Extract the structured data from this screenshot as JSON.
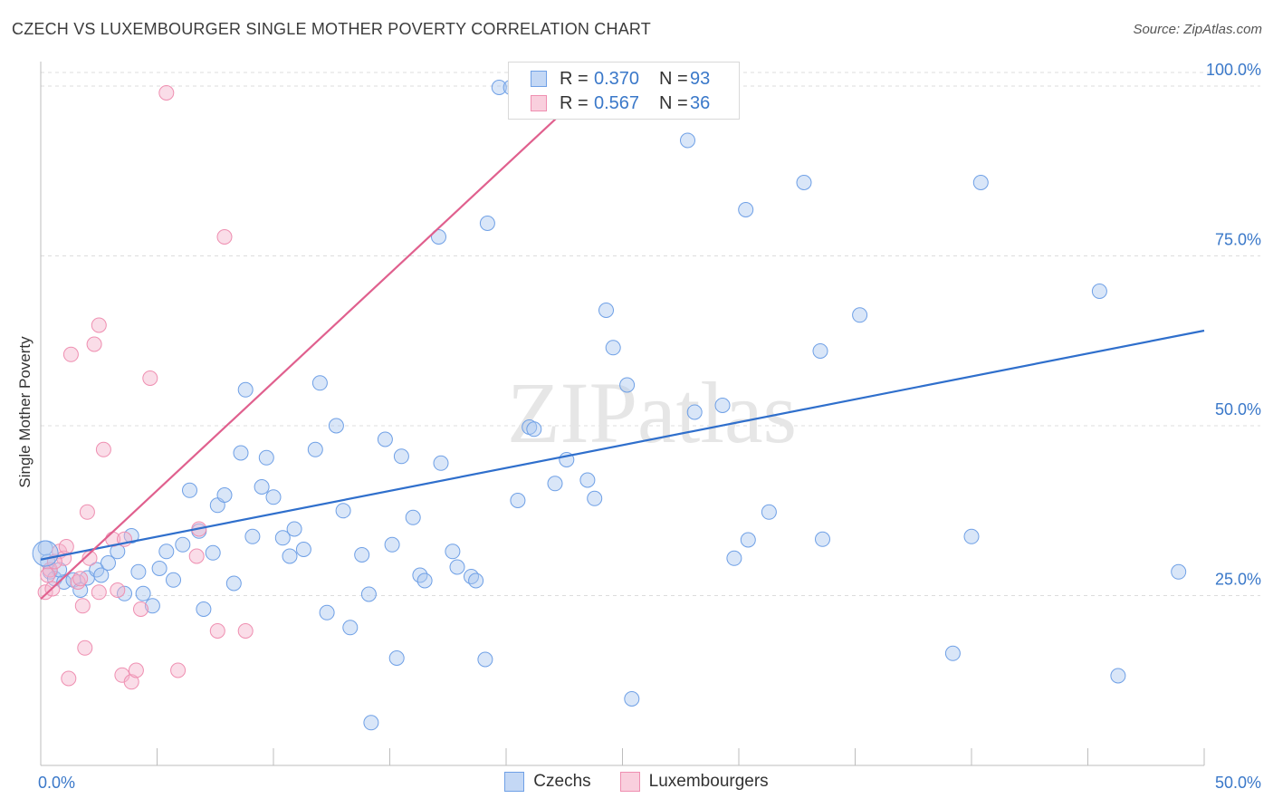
{
  "header": {
    "title": "CZECH VS LUXEMBOURGER SINGLE MOTHER POVERTY CORRELATION CHART",
    "source": "Source: ZipAtlas.com"
  },
  "watermark": "ZIPatlas",
  "legend_top": {
    "rows": [
      {
        "r_label": "R =",
        "r_value": "0.370",
        "n_label": "N =",
        "n_value": "93",
        "color": "#6fa0e6"
      },
      {
        "r_label": "R =",
        "r_value": "0.567",
        "n_label": "N =",
        "n_value": "36",
        "color": "#ef8fb1"
      }
    ]
  },
  "legend_bottom": {
    "items": [
      {
        "label": "Czechs",
        "color": "#6fa0e6"
      },
      {
        "label": "Luxembourgers",
        "color": "#ef8fb1"
      }
    ]
  },
  "chart_data": {
    "type": "scatter",
    "title": "CZECH VS LUXEMBOURGER SINGLE MOTHER POVERTY CORRELATION CHART",
    "xlabel": "",
    "ylabel": "Single Mother Poverty",
    "xlim": [
      0,
      50
    ],
    "ylim": [
      0,
      102
    ],
    "x_tick_labels": [
      "0.0%",
      "50.0%"
    ],
    "y_ticks": [
      25,
      50,
      75,
      100
    ],
    "y_tick_labels": [
      "25.0%",
      "50.0%",
      "75.0%",
      "100.0%"
    ],
    "grid": "horizontal dashed",
    "legend_position": "top-center",
    "series": [
      {
        "name": "Czechs",
        "color": "#6fa0e6",
        "trendline": {
          "x": [
            0,
            50
          ],
          "y": [
            30.3,
            64.0
          ]
        },
        "points": [
          [
            0.2,
            32.0
          ],
          [
            0.3,
            30.0
          ],
          [
            0.4,
            28.5
          ],
          [
            0.6,
            27.5
          ],
          [
            1.0,
            27.0
          ],
          [
            1.4,
            27.3
          ],
          [
            1.7,
            25.8
          ],
          [
            2.0,
            27.6
          ],
          [
            2.4,
            28.8
          ],
          [
            2.6,
            28.0
          ],
          [
            2.9,
            29.8
          ],
          [
            3.3,
            31.5
          ],
          [
            3.6,
            25.3
          ],
          [
            3.9,
            33.8
          ],
          [
            4.2,
            28.5
          ],
          [
            4.4,
            25.3
          ],
          [
            4.8,
            23.5
          ],
          [
            5.1,
            29.0
          ],
          [
            5.4,
            31.5
          ],
          [
            5.7,
            27.3
          ],
          [
            6.1,
            32.5
          ],
          [
            6.4,
            40.5
          ],
          [
            6.8,
            34.5
          ],
          [
            7.0,
            23.0
          ],
          [
            7.4,
            31.3
          ],
          [
            7.6,
            38.3
          ],
          [
            7.9,
            39.8
          ],
          [
            8.3,
            26.8
          ],
          [
            8.6,
            46.0
          ],
          [
            8.8,
            55.3
          ],
          [
            9.1,
            33.7
          ],
          [
            9.5,
            41.0
          ],
          [
            9.7,
            45.3
          ],
          [
            10.0,
            39.5
          ],
          [
            10.4,
            33.5
          ],
          [
            10.7,
            30.8
          ],
          [
            10.9,
            34.8
          ],
          [
            11.3,
            31.8
          ],
          [
            11.8,
            46.5
          ],
          [
            12.0,
            56.3
          ],
          [
            12.3,
            22.5
          ],
          [
            12.7,
            50.0
          ],
          [
            13.0,
            37.5
          ],
          [
            13.3,
            20.3
          ],
          [
            13.8,
            31.0
          ],
          [
            14.1,
            25.2
          ],
          [
            14.2,
            6.3
          ],
          [
            14.8,
            48.0
          ],
          [
            15.1,
            32.5
          ],
          [
            15.3,
            15.8
          ],
          [
            15.5,
            45.5
          ],
          [
            16.0,
            36.5
          ],
          [
            16.3,
            28.0
          ],
          [
            16.5,
            27.2
          ],
          [
            17.1,
            77.8
          ],
          [
            17.2,
            44.5
          ],
          [
            17.7,
            31.5
          ],
          [
            17.9,
            29.2
          ],
          [
            18.5,
            27.8
          ],
          [
            18.7,
            27.2
          ],
          [
            19.1,
            15.6
          ],
          [
            19.2,
            79.8
          ],
          [
            19.7,
            99.8
          ],
          [
            20.2,
            99.8
          ],
          [
            20.5,
            39.0
          ],
          [
            21.0,
            49.8
          ],
          [
            21.2,
            49.5
          ],
          [
            22.1,
            41.5
          ],
          [
            22.6,
            45.0
          ],
          [
            23.5,
            42.0
          ],
          [
            23.8,
            39.3
          ],
          [
            24.3,
            67.0
          ],
          [
            24.6,
            61.5
          ],
          [
            25.2,
            56.0
          ],
          [
            25.4,
            9.8
          ],
          [
            27.8,
            92.0
          ],
          [
            28.1,
            52.0
          ],
          [
            29.3,
            53.0
          ],
          [
            29.8,
            30.5
          ],
          [
            30.3,
            81.8
          ],
          [
            30.4,
            33.2
          ],
          [
            31.3,
            37.3
          ],
          [
            32.8,
            85.8
          ],
          [
            33.5,
            61.0
          ],
          [
            33.6,
            33.3
          ],
          [
            35.2,
            66.3
          ],
          [
            39.2,
            16.5
          ],
          [
            40.0,
            33.7
          ],
          [
            40.4,
            85.8
          ],
          [
            45.5,
            69.8
          ],
          [
            46.3,
            13.2
          ],
          [
            48.9,
            28.5
          ],
          [
            0.8,
            28.8
          ]
        ]
      },
      {
        "name": "Luxembourgers",
        "color": "#ef8fb1",
        "trendline": {
          "x": [
            0,
            23.8
          ],
          "y": [
            24.5,
            100.5
          ]
        },
        "points": [
          [
            0.2,
            25.5
          ],
          [
            0.4,
            28.8
          ],
          [
            0.5,
            26.0
          ],
          [
            0.8,
            31.5
          ],
          [
            1.0,
            30.5
          ],
          [
            1.1,
            32.2
          ],
          [
            1.2,
            12.8
          ],
          [
            1.3,
            60.5
          ],
          [
            1.6,
            27.0
          ],
          [
            1.7,
            27.5
          ],
          [
            1.8,
            23.5
          ],
          [
            1.9,
            17.3
          ],
          [
            2.0,
            37.3
          ],
          [
            2.1,
            30.5
          ],
          [
            2.3,
            62.0
          ],
          [
            2.5,
            25.5
          ],
          [
            2.5,
            64.8
          ],
          [
            2.7,
            46.5
          ],
          [
            3.1,
            33.3
          ],
          [
            3.3,
            25.8
          ],
          [
            3.5,
            13.3
          ],
          [
            3.6,
            33.3
          ],
          [
            3.9,
            12.3
          ],
          [
            4.1,
            14.0
          ],
          [
            4.3,
            23.0
          ],
          [
            4.7,
            57.0
          ],
          [
            5.4,
            99.0
          ],
          [
            5.9,
            14.0
          ],
          [
            6.7,
            30.8
          ],
          [
            6.8,
            34.8
          ],
          [
            7.6,
            19.8
          ],
          [
            7.9,
            77.8
          ],
          [
            8.8,
            19.8
          ],
          [
            23.4,
            99.5
          ],
          [
            0.3,
            28.0
          ],
          [
            0.6,
            30.0
          ]
        ]
      }
    ]
  }
}
